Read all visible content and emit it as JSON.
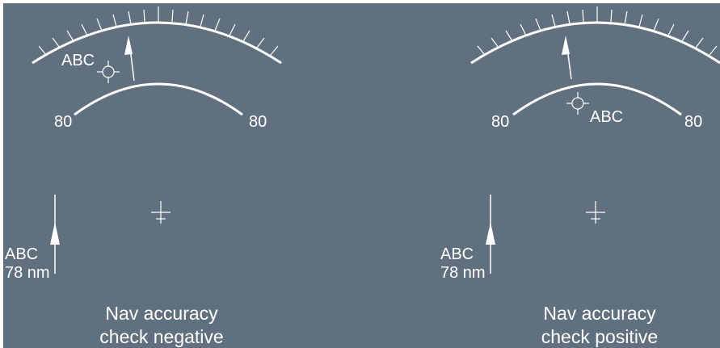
{
  "colors": {
    "background": "#60707e",
    "symbology": "#ffffff",
    "page_border": "#ffffff"
  },
  "icons": {
    "waypoint": "waypoint-crosshair-icon",
    "aircraft": "aircraft-reference-cross-icon",
    "bearing_pointer": "bearing-arrow-icon"
  },
  "panels": [
    {
      "id": "negative",
      "waypoint_label": "ABC",
      "range_ring_left_label": "80",
      "range_ring_right_label": "80",
      "beacon_name": "ABC",
      "beacon_distance": "78 nm",
      "caption_line1": "Nav accuracy",
      "caption_line2": "check negative"
    },
    {
      "id": "positive",
      "waypoint_label": "ABC",
      "range_ring_left_label": "80",
      "range_ring_right_label": "80",
      "beacon_name": "ABC",
      "beacon_distance": "78 nm",
      "caption_line1": "Nav accuracy",
      "caption_line2": "check positive"
    }
  ]
}
